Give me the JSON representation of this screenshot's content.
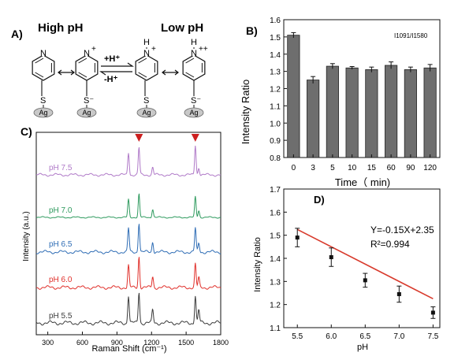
{
  "panel_a": {
    "label": "A)",
    "high_ph": "High pH",
    "low_ph": "Low pH",
    "forward": "+H⁺",
    "reverse": "-H⁺",
    "ring_atom": "N",
    "hydrogen": "H",
    "plus": "+",
    "plus_plus": "++",
    "sulfur": "S",
    "sulfur_minus": "S⁻",
    "metal": "Ag"
  },
  "chart_data": [
    {
      "panel": "B)",
      "type": "bar",
      "ylabel": "Intensity Ratio",
      "xlabel": "Time（ min)",
      "annotation": "I1091/I1580",
      "categories": [
        "0",
        "3",
        "5",
        "10",
        "15",
        "60",
        "90",
        "120"
      ],
      "values": [
        1.51,
        1.25,
        1.33,
        1.32,
        1.31,
        1.335,
        1.31,
        1.32
      ],
      "errors": [
        0.015,
        0.02,
        0.015,
        0.008,
        0.015,
        0.02,
        0.015,
        0.02
      ],
      "ylim": [
        0.8,
        1.6
      ],
      "yticks": [
        "0.8",
        "0.9",
        "1.0",
        "1.1",
        "1.2",
        "1.3",
        "1.4",
        "1.5",
        "1.6"
      ],
      "bar_color": "#6e6e6e"
    },
    {
      "panel": "C)",
      "type": "line",
      "ylabel": "Intensity (a.u.)",
      "xlabel": "Raman Shift (cm⁻¹)",
      "xlim": [
        200,
        1800
      ],
      "xticks": [
        "300",
        "600",
        "900",
        "1200",
        "1500",
        "1800"
      ],
      "marked_peaks": [
        1091,
        1580
      ],
      "marker_color": "#cc1f1f",
      "series": [
        {
          "name": "pH 5.5",
          "color": "#3b3b3b",
          "peaks": [
            [
              1000,
              0.75
            ],
            [
              1091,
              0.85
            ],
            [
              1210,
              0.35
            ],
            [
              1580,
              0.75
            ],
            [
              1610,
              0.35
            ]
          ]
        },
        {
          "name": "pH 6.0",
          "color": "#e0302b",
          "peaks": [
            [
              1000,
              0.7
            ],
            [
              1091,
              1.0
            ],
            [
              1210,
              0.35
            ],
            [
              1580,
              0.75
            ],
            [
              1610,
              0.3
            ]
          ]
        },
        {
          "name": "pH 6.5",
          "color": "#2f6db5",
          "peaks": [
            [
              1000,
              0.8
            ],
            [
              1091,
              1.0
            ],
            [
              1210,
              0.35
            ],
            [
              1580,
              0.8
            ],
            [
              1610,
              0.3
            ]
          ]
        },
        {
          "name": "pH 7.0",
          "color": "#2e9a5e",
          "peaks": [
            [
              1000,
              1.3
            ],
            [
              1091,
              1.7
            ],
            [
              1210,
              0.6
            ],
            [
              1580,
              1.5
            ],
            [
              1610,
              0.5
            ]
          ]
        },
        {
          "name": "pH 7.5",
          "color": "#b07ac8",
          "peaks": [
            [
              1000,
              0.9
            ],
            [
              1091,
              1.1
            ],
            [
              1210,
              0.3
            ],
            [
              1580,
              1.2
            ],
            [
              1610,
              0.3
            ]
          ]
        }
      ]
    },
    {
      "panel": "D)",
      "type": "scatter",
      "ylabel": "Intensity Ratio",
      "xlabel": "pH",
      "x": [
        5.5,
        6.0,
        6.5,
        7.0,
        7.5
      ],
      "y": [
        1.49,
        1.405,
        1.305,
        1.245,
        1.165
      ],
      "errors": [
        0.04,
        0.04,
        0.03,
        0.035,
        0.025
      ],
      "fit": {
        "slope": -0.15,
        "intercept": 2.35,
        "color": "#d83a2c"
      },
      "equation": "Y=-0.15X+2.35",
      "r2": "R²=0.994",
      "xlim": [
        5.3,
        7.6
      ],
      "ylim": [
        1.1,
        1.7
      ],
      "xticks": [
        "5.5",
        "6.0",
        "6.5",
        "7.0",
        "7.5"
      ],
      "yticks": [
        "1.1",
        "1.2",
        "1.3",
        "1.4",
        "1.5",
        "1.6",
        "1.7"
      ]
    }
  ]
}
